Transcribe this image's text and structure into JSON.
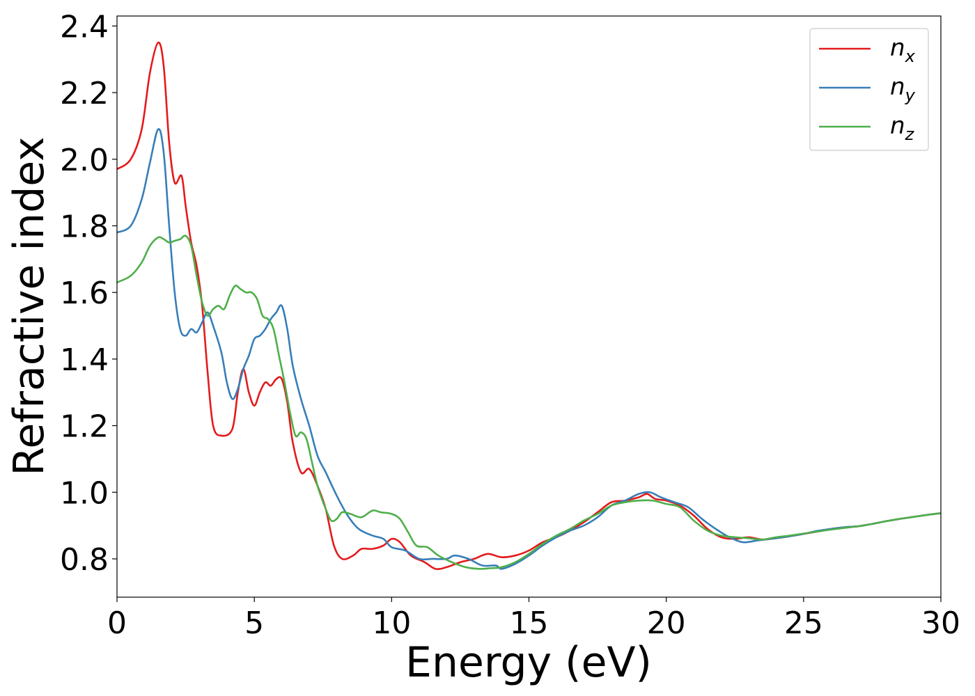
{
  "chart_data": {
    "type": "line",
    "title": "",
    "xlabel": "Energy (eV)",
    "ylabel": "Refractive index",
    "xlim": [
      0,
      30
    ],
    "ylim": [
      0.685,
      2.43
    ],
    "xticks": [
      0,
      5,
      10,
      15,
      20,
      25,
      30
    ],
    "xtick_labels": [
      "0",
      "5",
      "10",
      "15",
      "20",
      "25",
      "30"
    ],
    "yticks": [
      0.8,
      1.0,
      1.2,
      1.4,
      1.6,
      1.8,
      2.0,
      2.2,
      2.4
    ],
    "ytick_labels": [
      "0.8",
      "1.0",
      "1.2",
      "1.4",
      "1.6",
      "1.8",
      "2.0",
      "2.2",
      "2.4"
    ],
    "grid": false,
    "legend_position": "top-right",
    "series": [
      {
        "name": "n_x",
        "label_base": "n",
        "label_sub": "x",
        "color": "#e41a1c",
        "points": [
          [
            0,
            1.97
          ],
          [
            0.5,
            2.0
          ],
          [
            0.9,
            2.09
          ],
          [
            1.2,
            2.26
          ],
          [
            1.5,
            2.35
          ],
          [
            1.7,
            2.28
          ],
          [
            1.9,
            2.05
          ],
          [
            2.1,
            1.93
          ],
          [
            2.35,
            1.95
          ],
          [
            2.5,
            1.86
          ],
          [
            2.7,
            1.75
          ],
          [
            2.9,
            1.68
          ],
          [
            3.1,
            1.56
          ],
          [
            3.3,
            1.36
          ],
          [
            3.5,
            1.2
          ],
          [
            3.8,
            1.17
          ],
          [
            4.2,
            1.19
          ],
          [
            4.4,
            1.3
          ],
          [
            4.6,
            1.37
          ],
          [
            4.8,
            1.3
          ],
          [
            5.0,
            1.26
          ],
          [
            5.2,
            1.3
          ],
          [
            5.4,
            1.33
          ],
          [
            5.6,
            1.32
          ],
          [
            5.8,
            1.34
          ],
          [
            6.0,
            1.34
          ],
          [
            6.2,
            1.27
          ],
          [
            6.4,
            1.15
          ],
          [
            6.7,
            1.06
          ],
          [
            7.0,
            1.07
          ],
          [
            7.3,
            1.02
          ],
          [
            7.6,
            0.95
          ],
          [
            7.9,
            0.84
          ],
          [
            8.2,
            0.8
          ],
          [
            8.6,
            0.81
          ],
          [
            8.9,
            0.83
          ],
          [
            9.3,
            0.83
          ],
          [
            9.7,
            0.84
          ],
          [
            10.0,
            0.86
          ],
          [
            10.3,
            0.85
          ],
          [
            10.7,
            0.81
          ],
          [
            11.2,
            0.79
          ],
          [
            11.6,
            0.77
          ],
          [
            12.0,
            0.775
          ],
          [
            12.5,
            0.79
          ],
          [
            13.0,
            0.8
          ],
          [
            13.5,
            0.815
          ],
          [
            14.0,
            0.805
          ],
          [
            14.5,
            0.81
          ],
          [
            15.0,
            0.825
          ],
          [
            15.5,
            0.85
          ],
          [
            16.0,
            0.865
          ],
          [
            16.5,
            0.885
          ],
          [
            17.0,
            0.91
          ],
          [
            17.5,
            0.94
          ],
          [
            18.0,
            0.97
          ],
          [
            18.5,
            0.975
          ],
          [
            19.0,
            0.985
          ],
          [
            19.3,
            0.995
          ],
          [
            19.6,
            0.98
          ],
          [
            20.0,
            0.975
          ],
          [
            20.5,
            0.96
          ],
          [
            21.0,
            0.93
          ],
          [
            21.5,
            0.89
          ],
          [
            22.0,
            0.865
          ],
          [
            22.5,
            0.86
          ],
          [
            23.0,
            0.865
          ],
          [
            23.5,
            0.858
          ],
          [
            24.0,
            0.862
          ],
          [
            24.5,
            0.868
          ],
          [
            25.0,
            0.875
          ],
          [
            25.5,
            0.882
          ],
          [
            26.0,
            0.89
          ],
          [
            26.5,
            0.895
          ],
          [
            27.0,
            0.898
          ],
          [
            27.5,
            0.905
          ],
          [
            28.0,
            0.913
          ],
          [
            28.5,
            0.92
          ],
          [
            29.0,
            0.926
          ],
          [
            29.5,
            0.932
          ],
          [
            30.0,
            0.937
          ]
        ]
      },
      {
        "name": "n_y",
        "label_base": "n",
        "label_sub": "y",
        "color": "#377eb8",
        "points": [
          [
            0,
            1.78
          ],
          [
            0.5,
            1.8
          ],
          [
            0.9,
            1.88
          ],
          [
            1.2,
            1.99
          ],
          [
            1.5,
            2.09
          ],
          [
            1.7,
            2.02
          ],
          [
            1.9,
            1.8
          ],
          [
            2.1,
            1.6
          ],
          [
            2.3,
            1.49
          ],
          [
            2.5,
            1.47
          ],
          [
            2.7,
            1.49
          ],
          [
            2.9,
            1.48
          ],
          [
            3.1,
            1.51
          ],
          [
            3.3,
            1.54
          ],
          [
            3.5,
            1.5
          ],
          [
            3.8,
            1.42
          ],
          [
            4.0,
            1.33
          ],
          [
            4.2,
            1.28
          ],
          [
            4.4,
            1.31
          ],
          [
            4.6,
            1.37
          ],
          [
            4.8,
            1.41
          ],
          [
            5.0,
            1.46
          ],
          [
            5.2,
            1.47
          ],
          [
            5.4,
            1.49
          ],
          [
            5.6,
            1.52
          ],
          [
            5.8,
            1.54
          ],
          [
            6.0,
            1.56
          ],
          [
            6.2,
            1.49
          ],
          [
            6.4,
            1.38
          ],
          [
            6.7,
            1.28
          ],
          [
            7.0,
            1.2
          ],
          [
            7.3,
            1.11
          ],
          [
            7.6,
            1.06
          ],
          [
            8.0,
            0.99
          ],
          [
            8.4,
            0.93
          ],
          [
            8.8,
            0.89
          ],
          [
            9.3,
            0.87
          ],
          [
            9.7,
            0.86
          ],
          [
            10.0,
            0.835
          ],
          [
            10.5,
            0.825
          ],
          [
            11.0,
            0.8
          ],
          [
            11.5,
            0.8
          ],
          [
            12.0,
            0.8
          ],
          [
            12.3,
            0.81
          ],
          [
            12.8,
            0.8
          ],
          [
            13.3,
            0.78
          ],
          [
            13.8,
            0.78
          ],
          [
            14.0,
            0.77
          ],
          [
            14.5,
            0.785
          ],
          [
            15.0,
            0.81
          ],
          [
            15.5,
            0.84
          ],
          [
            16.0,
            0.865
          ],
          [
            16.5,
            0.885
          ],
          [
            17.0,
            0.9
          ],
          [
            17.5,
            0.925
          ],
          [
            18.0,
            0.96
          ],
          [
            18.5,
            0.975
          ],
          [
            19.0,
            0.995
          ],
          [
            19.4,
            1.0
          ],
          [
            19.8,
            0.985
          ],
          [
            20.3,
            0.97
          ],
          [
            20.8,
            0.955
          ],
          [
            21.3,
            0.92
          ],
          [
            21.8,
            0.89
          ],
          [
            22.3,
            0.865
          ],
          [
            22.8,
            0.85
          ],
          [
            23.3,
            0.855
          ],
          [
            23.8,
            0.86
          ],
          [
            24.5,
            0.868
          ],
          [
            25.0,
            0.875
          ],
          [
            25.5,
            0.884
          ],
          [
            26.0,
            0.89
          ],
          [
            26.5,
            0.895
          ],
          [
            27.0,
            0.898
          ],
          [
            27.5,
            0.905
          ],
          [
            28.0,
            0.913
          ],
          [
            28.5,
            0.92
          ],
          [
            29.0,
            0.926
          ],
          [
            29.5,
            0.932
          ],
          [
            30.0,
            0.937
          ]
        ]
      },
      {
        "name": "n_z",
        "label_base": "n",
        "label_sub": "z",
        "color": "#4daf4a",
        "points": [
          [
            0,
            1.63
          ],
          [
            0.5,
            1.65
          ],
          [
            0.9,
            1.69
          ],
          [
            1.2,
            1.74
          ],
          [
            1.5,
            1.765
          ],
          [
            1.7,
            1.76
          ],
          [
            1.9,
            1.75
          ],
          [
            2.1,
            1.755
          ],
          [
            2.3,
            1.76
          ],
          [
            2.5,
            1.77
          ],
          [
            2.7,
            1.74
          ],
          [
            2.9,
            1.65
          ],
          [
            3.1,
            1.57
          ],
          [
            3.3,
            1.53
          ],
          [
            3.5,
            1.55
          ],
          [
            3.7,
            1.56
          ],
          [
            3.9,
            1.55
          ],
          [
            4.1,
            1.59
          ],
          [
            4.3,
            1.62
          ],
          [
            4.5,
            1.61
          ],
          [
            4.7,
            1.6
          ],
          [
            4.9,
            1.6
          ],
          [
            5.1,
            1.58
          ],
          [
            5.3,
            1.53
          ],
          [
            5.5,
            1.52
          ],
          [
            5.7,
            1.49
          ],
          [
            5.9,
            1.41
          ],
          [
            6.1,
            1.33
          ],
          [
            6.3,
            1.24
          ],
          [
            6.5,
            1.17
          ],
          [
            6.7,
            1.18
          ],
          [
            6.9,
            1.16
          ],
          [
            7.1,
            1.09
          ],
          [
            7.3,
            1.02
          ],
          [
            7.6,
            0.95
          ],
          [
            7.8,
            0.915
          ],
          [
            8.0,
            0.92
          ],
          [
            8.2,
            0.94
          ],
          [
            8.5,
            0.935
          ],
          [
            8.9,
            0.925
          ],
          [
            9.3,
            0.945
          ],
          [
            9.6,
            0.94
          ],
          [
            10.0,
            0.935
          ],
          [
            10.3,
            0.92
          ],
          [
            10.6,
            0.88
          ],
          [
            10.9,
            0.84
          ],
          [
            11.3,
            0.835
          ],
          [
            11.7,
            0.81
          ],
          [
            12.2,
            0.79
          ],
          [
            12.7,
            0.775
          ],
          [
            13.2,
            0.77
          ],
          [
            13.6,
            0.772
          ],
          [
            14.0,
            0.775
          ],
          [
            14.5,
            0.79
          ],
          [
            15.0,
            0.815
          ],
          [
            15.5,
            0.845
          ],
          [
            16.0,
            0.87
          ],
          [
            16.5,
            0.89
          ],
          [
            17.0,
            0.915
          ],
          [
            17.5,
            0.935
          ],
          [
            18.0,
            0.96
          ],
          [
            18.5,
            0.97
          ],
          [
            19.0,
            0.975
          ],
          [
            19.5,
            0.975
          ],
          [
            20.0,
            0.965
          ],
          [
            20.5,
            0.955
          ],
          [
            21.0,
            0.915
          ],
          [
            21.5,
            0.885
          ],
          [
            22.0,
            0.87
          ],
          [
            22.5,
            0.865
          ],
          [
            23.0,
            0.862
          ],
          [
            23.5,
            0.858
          ],
          [
            24.0,
            0.865
          ],
          [
            24.5,
            0.87
          ],
          [
            25.0,
            0.876
          ],
          [
            25.5,
            0.882
          ],
          [
            26.0,
            0.888
          ],
          [
            26.5,
            0.893
          ],
          [
            27.0,
            0.898
          ],
          [
            27.5,
            0.905
          ],
          [
            28.0,
            0.913
          ],
          [
            28.5,
            0.92
          ],
          [
            29.0,
            0.926
          ],
          [
            29.5,
            0.932
          ],
          [
            30.0,
            0.937
          ]
        ]
      }
    ]
  }
}
